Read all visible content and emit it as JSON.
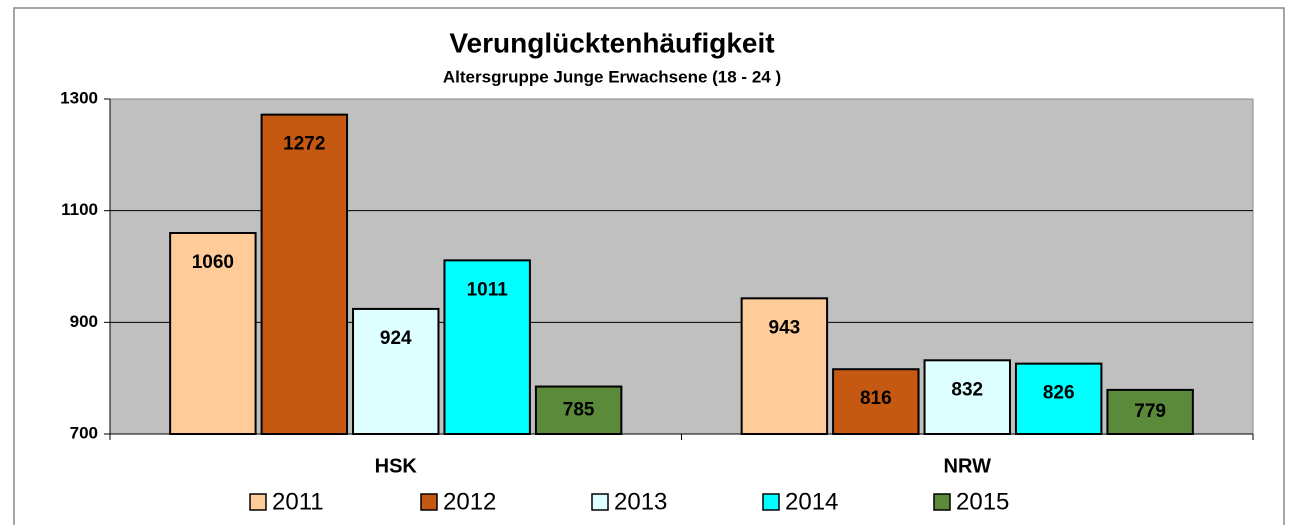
{
  "chart_data": {
    "type": "bar",
    "title": "Verunglücktenhäufigkeit",
    "subtitle": "Altersgruppe Junge Erwachsene (18 - 24 )",
    "categories": [
      "HSK",
      "NRW"
    ],
    "series": [
      {
        "name": "2011",
        "color": "#ffcc99",
        "values": [
          1060,
          943
        ]
      },
      {
        "name": "2012",
        "color": "#c65911",
        "values": [
          1272,
          816
        ]
      },
      {
        "name": "2013",
        "color": "#ddffff",
        "values": [
          924,
          832
        ]
      },
      {
        "name": "2014",
        "color": "#00ffff",
        "values": [
          1011,
          826
        ]
      },
      {
        "name": "2015",
        "color": "#5a8a3a",
        "values": [
          785,
          779
        ]
      }
    ],
    "ylim": [
      700,
      1300
    ],
    "yticks": [
      700,
      900,
      1100,
      1300
    ],
    "grid": true,
    "legend": "bottom"
  }
}
